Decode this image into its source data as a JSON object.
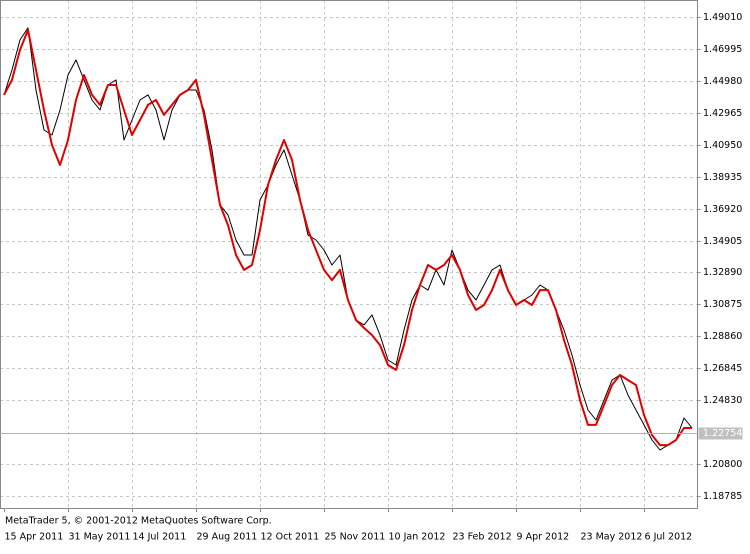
{
  "chart_data": {
    "type": "line",
    "footer": "MetaTrader 5, © 2001-2012 MetaQuotes Software Corp.",
    "categories": [
      "15 Apr 2011",
      null,
      null,
      null,
      null,
      null,
      null,
      null,
      "31 May 2011",
      null,
      null,
      null,
      null,
      null,
      null,
      null,
      "14 Jul 2011",
      null,
      null,
      null,
      null,
      null,
      null,
      null,
      "29 Aug 2011",
      null,
      null,
      null,
      null,
      null,
      null,
      null,
      "12 Oct 2011",
      null,
      null,
      null,
      null,
      null,
      null,
      null,
      "25 Nov 2011",
      null,
      null,
      null,
      null,
      null,
      null,
      null,
      "10 Jan 2012",
      null,
      null,
      null,
      null,
      null,
      null,
      null,
      "23 Feb 2012",
      null,
      null,
      null,
      null,
      null,
      null,
      null,
      "9 Apr 2012",
      null,
      null,
      null,
      null,
      null,
      null,
      null,
      "23 May 2012",
      null,
      null,
      null,
      null,
      null,
      null,
      null,
      "6 Jul 2012",
      null,
      null,
      null,
      null,
      null,
      null
    ],
    "series": [
      {
        "color": "#000000",
        "values": [
          1.4409,
          1.4567,
          1.4756,
          1.4832,
          1.444,
          1.4188,
          1.4156,
          1.4314,
          1.4535,
          1.463,
          1.4504,
          1.4377,
          1.4314,
          1.4472,
          1.4504,
          1.4125,
          1.4251,
          1.4377,
          1.4409,
          1.4314,
          1.4125,
          1.4314,
          1.4409,
          1.444,
          1.444,
          1.4314,
          1.4062,
          1.3715,
          1.3652,
          1.3494,
          1.3399,
          1.3399,
          1.3746,
          1.3841,
          1.3967,
          1.4062,
          1.3904,
          1.3746,
          1.3525,
          1.3494,
          1.3431,
          1.3336,
          1.3399,
          1.3115,
          1.2989,
          1.2958,
          1.3021,
          1.2894,
          1.2737,
          1.2705,
          1.2926,
          1.3115,
          1.321,
          1.3178,
          1.3305,
          1.321,
          1.3431,
          1.3305,
          1.3178,
          1.3115,
          1.321,
          1.3305,
          1.3336,
          1.3178,
          1.3084,
          1.3115,
          1.3147,
          1.321,
          1.3178,
          1.3052,
          1.2926,
          1.2768,
          1.2579,
          1.2421,
          1.2358,
          1.2484,
          1.261,
          1.2642,
          1.2516,
          1.2421,
          1.2327,
          1.2232,
          1.2169,
          1.22,
          1.2232,
          1.2371,
          1.2308
        ]
      },
      {
        "color": "#e00000",
        "values": [
          1.4409,
          1.4504,
          1.4693,
          1.4819,
          1.4567,
          1.4314,
          1.4093,
          1.3967,
          1.4125,
          1.4377,
          1.4535,
          1.4409,
          1.4346,
          1.4472,
          1.4472,
          1.4314,
          1.4156,
          1.4251,
          1.4346,
          1.4377,
          1.4283,
          1.4346,
          1.4409,
          1.444,
          1.4504,
          1.4283,
          1.3999,
          1.3715,
          1.3588,
          1.3399,
          1.3305,
          1.3336,
          1.3557,
          1.3841,
          1.3999,
          1.4125,
          1.3999,
          1.3746,
          1.3557,
          1.3431,
          1.3305,
          1.3241,
          1.3305,
          1.3115,
          1.2989,
          1.2939,
          1.2894,
          1.2831,
          1.2705,
          1.2674,
          1.2831,
          1.3052,
          1.321,
          1.3336,
          1.3305,
          1.3336,
          1.3399,
          1.3305,
          1.3147,
          1.3052,
          1.3084,
          1.3178,
          1.3305,
          1.3178,
          1.3084,
          1.3115,
          1.3084,
          1.3178,
          1.3178,
          1.3052,
          1.2863,
          1.2705,
          1.2484,
          1.2327,
          1.2327,
          1.2453,
          1.2579,
          1.2642,
          1.261,
          1.2579,
          1.239,
          1.2263,
          1.22,
          1.22,
          1.2232,
          1.2308,
          1.2308
        ]
      }
    ],
    "ylim": [
      1.1803,
      1.5008
    ],
    "yticks": [
      {
        "value": 1.4901,
        "label": "1.49010"
      },
      1.46995,
      {
        "value": 1.4498,
        "label": "1.44980"
      },
      1.42965,
      {
        "value": 1.4095,
        "label": "1.40950"
      },
      1.38935,
      {
        "value": 1.3692,
        "label": "1.36920"
      },
      1.34905,
      {
        "value": 1.3289,
        "label": "1.32890"
      },
      1.30875,
      {
        "value": 1.2886,
        "label": "1.28860"
      },
      1.26845,
      {
        "value": 1.2483,
        "label": "1.24830"
      },
      {
        "value": 1.208,
        "label": "1.20800"
      },
      1.18785
    ],
    "current_price": 1.22754,
    "grid": true
  }
}
